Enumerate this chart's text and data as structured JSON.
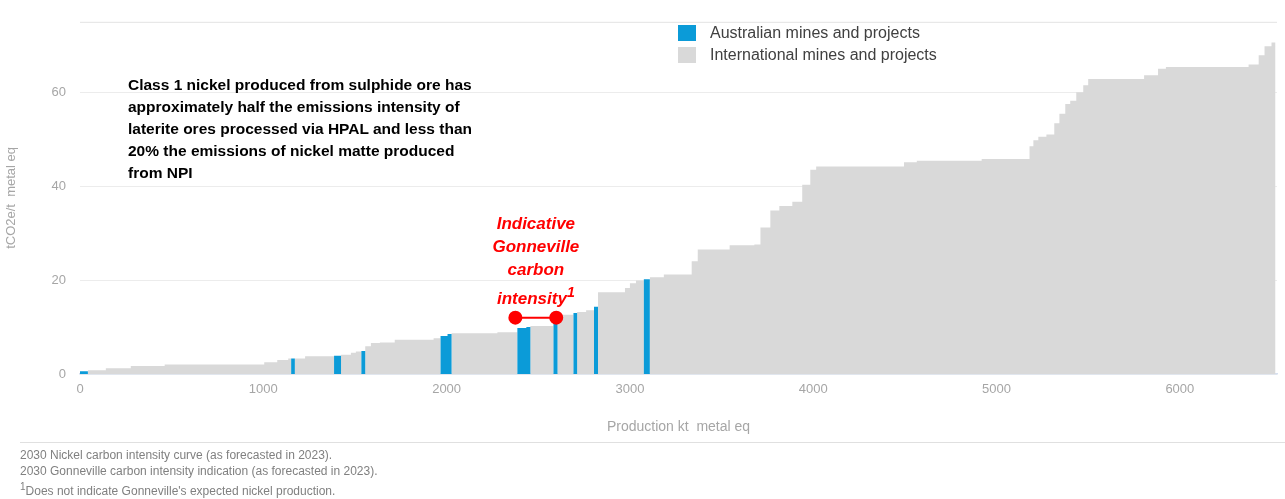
{
  "chart_data": {
    "type": "area",
    "xlabel": "Production kt  metal eq",
    "ylabel": "tCO2e/t  metal eq",
    "xlim": [
      0,
      6530
    ],
    "xticks": [
      0,
      1000,
      2000,
      3000,
      4000,
      5000,
      6000
    ],
    "ylim": [
      0,
      75
    ],
    "yticks": [
      0,
      20,
      40,
      60
    ],
    "grid": "y",
    "legend": "top right",
    "series": [
      {
        "name": "Australian mines and projects",
        "color": "#0b9bd8",
        "x": [
          0,
          43,
          43,
          1152,
          1152,
          1172,
          1172,
          1386,
          1386,
          1424,
          1424,
          1535,
          1535,
          1556,
          1556,
          1967,
          1967,
          2005,
          2005,
          2027,
          2027,
          2386,
          2386,
          2435,
          2435,
          2457,
          2457,
          2583,
          2583,
          2605,
          2605,
          2692,
          2692,
          2712,
          2712,
          2804,
          2804,
          2826,
          2826,
          3076,
          3076,
          3109
        ],
        "values": [
          0.6,
          0.6,
          0,
          0,
          3.3,
          3.3,
          0,
          0,
          3.9,
          3.9,
          0,
          0,
          4.9,
          4.9,
          0,
          0,
          8.1,
          8.1,
          8.5,
          8.5,
          0,
          0,
          9.8,
          9.8,
          10.0,
          10.0,
          0,
          0,
          11.8,
          11.8,
          0,
          0,
          13.0,
          13.0,
          0,
          0,
          14.3,
          14.3,
          0,
          0,
          20.2,
          20.2
        ]
      },
      {
        "name": "International mines and projects",
        "color": "#d9d9d9",
        "x": [
          43,
          141,
          141,
          277,
          277,
          462,
          462,
          1005,
          1005,
          1076,
          1076,
          1136,
          1136,
          1152,
          1152,
          1172,
          1172,
          1228,
          1228,
          1386,
          1386,
          1424,
          1424,
          1478,
          1478,
          1505,
          1505,
          1535,
          1535,
          1556,
          1556,
          1587,
          1587,
          1636,
          1636,
          1717,
          1717,
          1929,
          1929,
          1967,
          1967,
          2027,
          2027,
          2277,
          2277,
          2386,
          2386,
          2457,
          2457,
          2583,
          2583,
          2605,
          2605,
          2692,
          2692,
          2712,
          2712,
          2761,
          2761,
          2804,
          2804,
          2826,
          2826,
          2973,
          2973,
          3000,
          3000,
          3033,
          3033,
          3076,
          3076,
          3109,
          3109,
          3185,
          3185,
          3337,
          3337,
          3370,
          3370,
          3544,
          3544,
          3679,
          3679,
          3712,
          3712,
          3766,
          3766,
          3815,
          3815,
          3886,
          3886,
          3940,
          3940,
          3984,
          3984,
          4016,
          4016,
          4495,
          4495,
          4565,
          4565,
          4919,
          4919,
          5180,
          5180,
          5201,
          5201,
          5228,
          5228,
          5272,
          5272,
          5315,
          5315,
          5343,
          5343,
          5375,
          5375,
          5402,
          5402,
          5435,
          5435,
          5473,
          5473,
          5500,
          5500,
          5805,
          5805,
          5881,
          5881,
          5924,
          5924,
          6375,
          6375,
          6430,
          6430,
          6462,
          6462,
          6500,
          6500,
          6522
        ],
        "values": [
          0.8,
          0.8,
          1.2,
          1.2,
          1.7,
          1.7,
          2.0,
          2.0,
          2.5,
          2.5,
          3.0,
          3.0,
          3.3,
          3.3,
          0,
          0,
          3.3,
          3.3,
          3.8,
          3.8,
          0,
          0,
          4.1,
          4.1,
          4.5,
          4.5,
          4.8,
          4.8,
          0,
          0,
          5.9,
          5.9,
          6.6,
          6.6,
          6.7,
          6.7,
          7.3,
          7.3,
          7.6,
          7.6,
          0,
          0,
          8.7,
          8.7,
          8.9,
          8.9,
          0,
          0,
          10.2,
          10.2,
          0,
          0,
          12.6,
          12.6,
          0,
          0,
          13.2,
          13.2,
          13.6,
          13.6,
          0,
          0,
          17.4,
          17.4,
          18.3,
          18.3,
          19.3,
          19.3,
          19.9,
          19.9,
          0,
          0,
          20.6,
          20.6,
          21.2,
          21.2,
          24.0,
          24.0,
          26.5,
          26.5,
          27.4,
          27.4,
          27.6,
          27.6,
          31.2,
          31.2,
          34.8,
          34.8,
          35.8,
          35.8,
          36.7,
          36.7,
          40.3,
          40.3,
          43.5,
          43.5,
          44.2,
          44.2,
          45.1,
          45.1,
          45.4,
          45.4,
          45.8,
          45.8,
          48.5,
          48.5,
          49.8,
          49.8,
          50.5,
          50.5,
          51.0,
          51.0,
          53.4,
          53.4,
          55.4,
          55.4,
          57.5,
          57.5,
          58.2,
          58.2,
          60.0,
          60.0,
          61.5,
          61.5,
          62.8,
          62.8,
          63.6,
          63.6,
          65.0,
          65.0,
          65.4,
          65.4,
          65.9,
          65.9,
          67.9,
          67.9,
          69.8,
          69.8,
          70.6,
          70.6
        ]
      },
      {
        "type": "line",
        "color": "#ff0000",
        "marker": "circle",
        "x": [
          2375,
          2598
        ],
        "values": [
          12.0,
          12.0
        ]
      }
    ],
    "annotations": [
      "Class 1 nickel produced from sulphide ore has approximately half the emissions intensity of laterite ores processed via HPAL and less than 20% the emissions of nickel matte produced from NPI",
      {
        "text": "Indicative Gonneville carbon intensity$^{1}$",
        "x": 2487,
        "y": 12.0
      },
      "2030 Nickel carbon intensity curve (as forecasted in 2023).",
      "2030 Gonneville carbon intensity indication (as forecasted in 2023).",
      "$^{1}$Does not indicate Gonneville's expected nickel production."
    ]
  }
}
